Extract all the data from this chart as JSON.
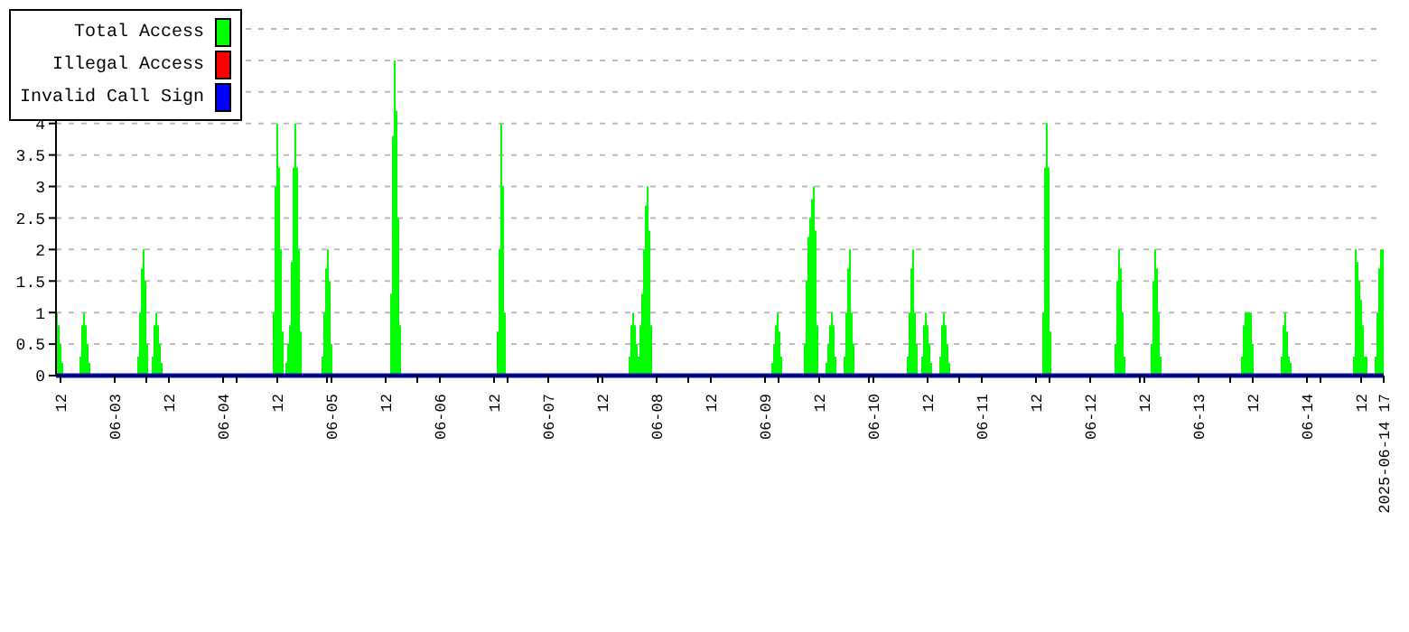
{
  "chart_data": {
    "type": "area",
    "xlim": [
      "2025-06-02T11:00",
      "2025-06-14T17:00"
    ],
    "ylim": [
      0,
      5.5
    ],
    "yticks": [
      0,
      0.5,
      1,
      1.5,
      2,
      2.5,
      3,
      3.5,
      4,
      {
        "value": 4.5,
        "label": null
      },
      {
        "value": 5,
        "label": null
      },
      {
        "value": 5.5,
        "label": null
      }
    ],
    "xticks": [
      {
        "value": "2025-06-02T12:00",
        "label": "12"
      },
      {
        "value": "2025-06-03T00:00",
        "label": "06-03"
      },
      {
        "value": "2025-06-03T07:00",
        "label": null
      },
      {
        "value": "2025-06-03T12:00",
        "label": "12"
      },
      {
        "value": "2025-06-04T00:00",
        "label": "06-04"
      },
      {
        "value": "2025-06-04T03:00",
        "label": null
      },
      {
        "value": "2025-06-04T12:00",
        "label": "12"
      },
      {
        "value": "2025-06-04T23:00",
        "label": null
      },
      {
        "value": "2025-06-05T00:00",
        "label": "06-05"
      },
      {
        "value": "2025-06-05T12:00",
        "label": "12"
      },
      {
        "value": "2025-06-05T19:00",
        "label": null
      },
      {
        "value": "2025-06-06T00:00",
        "label": "06-06"
      },
      {
        "value": "2025-06-06T12:00",
        "label": "12"
      },
      {
        "value": "2025-06-06T15:00",
        "label": null
      },
      {
        "value": "2025-06-07T00:00",
        "label": "06-07"
      },
      {
        "value": "2025-06-07T11:00",
        "label": null
      },
      {
        "value": "2025-06-07T12:00",
        "label": "12"
      },
      {
        "value": "2025-06-08T00:00",
        "label": "06-08"
      },
      {
        "value": "2025-06-08T07:00",
        "label": null
      },
      {
        "value": "2025-06-08T12:00",
        "label": "12"
      },
      {
        "value": "2025-06-09T00:00",
        "label": "06-09"
      },
      {
        "value": "2025-06-09T03:00",
        "label": null
      },
      {
        "value": "2025-06-09T12:00",
        "label": "12"
      },
      {
        "value": "2025-06-09T23:00",
        "label": null
      },
      {
        "value": "2025-06-10T00:00",
        "label": "06-10"
      },
      {
        "value": "2025-06-10T12:00",
        "label": "12"
      },
      {
        "value": "2025-06-10T19:00",
        "label": null
      },
      {
        "value": "2025-06-11T00:00",
        "label": "06-11"
      },
      {
        "value": "2025-06-11T12:00",
        "label": "12"
      },
      {
        "value": "2025-06-11T15:00",
        "label": null
      },
      {
        "value": "2025-06-12T00:00",
        "label": "06-12"
      },
      {
        "value": "2025-06-12T11:00",
        "label": null
      },
      {
        "value": "2025-06-12T12:00",
        "label": "12"
      },
      {
        "value": "2025-06-13T00:00",
        "label": "06-13"
      },
      {
        "value": "2025-06-13T07:00",
        "label": null
      },
      {
        "value": "2025-06-13T12:00",
        "label": "12"
      },
      {
        "value": "2025-06-14T00:00",
        "label": "06-14"
      },
      {
        "value": "2025-06-14T03:00",
        "label": null
      },
      {
        "value": "2025-06-14T12:00",
        "label": "12"
      },
      {
        "value": "2025-06-14T17:00",
        "label": "2025-06-14 17"
      }
    ],
    "grid": "y",
    "legend": "top left",
    "series": [
      {
        "name": "Total Access",
        "color": "#00ff00",
        "x": [
          "2025-06-02T11:00",
          "2025-06-02T11:24",
          "2025-06-02T11:48",
          "2025-06-02T12:12",
          "2025-06-02T12:36",
          "2025-06-02T16:12",
          "2025-06-02T16:36",
          "2025-06-02T17:00",
          "2025-06-02T17:24",
          "2025-06-02T17:48",
          "2025-06-02T18:12",
          "2025-06-02T18:36",
          "2025-06-03T05:00",
          "2025-06-03T05:24",
          "2025-06-03T05:48",
          "2025-06-03T06:12",
          "2025-06-03T06:36",
          "2025-06-03T07:00",
          "2025-06-03T07:24",
          "2025-06-03T08:12",
          "2025-06-03T08:36",
          "2025-06-03T09:00",
          "2025-06-03T09:24",
          "2025-06-03T09:48",
          "2025-06-03T10:12",
          "2025-06-03T10:36",
          "2025-06-04T11:00",
          "2025-06-04T11:24",
          "2025-06-04T11:48",
          "2025-06-04T12:12",
          "2025-06-04T12:36",
          "2025-06-04T13:00",
          "2025-06-04T13:24",
          "2025-06-04T13:48",
          "2025-06-04T14:12",
          "2025-06-04T14:36",
          "2025-06-04T15:00",
          "2025-06-04T15:24",
          "2025-06-04T15:48",
          "2025-06-04T16:12",
          "2025-06-04T16:36",
          "2025-06-04T17:00",
          "2025-06-04T17:24",
          "2025-06-04T21:48",
          "2025-06-04T22:12",
          "2025-06-04T22:36",
          "2025-06-04T23:00",
          "2025-06-04T23:24",
          "2025-06-04T23:48",
          "2025-06-05T00:12",
          "2025-06-05T13:00",
          "2025-06-05T13:24",
          "2025-06-05T13:48",
          "2025-06-05T14:12",
          "2025-06-05T14:36",
          "2025-06-05T15:00",
          "2025-06-05T15:24",
          "2025-06-06T12:36",
          "2025-06-06T13:00",
          "2025-06-06T13:24",
          "2025-06-06T13:48",
          "2025-06-06T14:12",
          "2025-06-06T14:36",
          "2025-06-07T17:48",
          "2025-06-07T18:12",
          "2025-06-07T18:36",
          "2025-06-07T19:00",
          "2025-06-07T19:24",
          "2025-06-07T19:48",
          "2025-06-07T20:12",
          "2025-06-07T20:36",
          "2025-06-07T21:00",
          "2025-06-07T21:24",
          "2025-06-07T21:48",
          "2025-06-07T22:12",
          "2025-06-07T22:36",
          "2025-06-07T23:00",
          "2025-06-09T01:24",
          "2025-06-09T01:48",
          "2025-06-09T02:12",
          "2025-06-09T02:36",
          "2025-06-09T03:00",
          "2025-06-09T03:24",
          "2025-06-09T03:48",
          "2025-06-09T08:36",
          "2025-06-09T09:00",
          "2025-06-09T09:24",
          "2025-06-09T09:48",
          "2025-06-09T10:12",
          "2025-06-09T10:36",
          "2025-06-09T11:00",
          "2025-06-09T11:24",
          "2025-06-09T11:48",
          "2025-06-09T13:24",
          "2025-06-09T13:48",
          "2025-06-09T14:12",
          "2025-06-09T14:36",
          "2025-06-09T15:00",
          "2025-06-09T15:24",
          "2025-06-09T15:48",
          "2025-06-09T17:24",
          "2025-06-09T17:48",
          "2025-06-09T18:12",
          "2025-06-09T18:36",
          "2025-06-09T19:00",
          "2025-06-09T19:24",
          "2025-06-09T19:48",
          "2025-06-10T07:24",
          "2025-06-10T07:48",
          "2025-06-10T08:12",
          "2025-06-10T08:36",
          "2025-06-10T09:00",
          "2025-06-10T09:24",
          "2025-06-10T09:48",
          "2025-06-10T10:36",
          "2025-06-10T11:00",
          "2025-06-10T11:24",
          "2025-06-10T11:48",
          "2025-06-10T12:12",
          "2025-06-10T12:36",
          "2025-06-10T13:00",
          "2025-06-10T14:36",
          "2025-06-10T15:00",
          "2025-06-10T15:24",
          "2025-06-10T15:48",
          "2025-06-10T16:12",
          "2025-06-10T16:36",
          "2025-06-10T17:00",
          "2025-06-11T13:24",
          "2025-06-11T13:48",
          "2025-06-11T14:12",
          "2025-06-11T14:36",
          "2025-06-11T15:00",
          "2025-06-11T15:24",
          "2025-06-12T05:24",
          "2025-06-12T05:48",
          "2025-06-12T06:12",
          "2025-06-12T06:36",
          "2025-06-12T07:00",
          "2025-06-12T07:24",
          "2025-06-12T07:48",
          "2025-06-12T13:24",
          "2025-06-12T13:48",
          "2025-06-12T14:12",
          "2025-06-12T14:36",
          "2025-06-12T15:00",
          "2025-06-12T15:24",
          "2025-06-12T15:48",
          "2025-06-13T09:24",
          "2025-06-13T09:48",
          "2025-06-13T10:12",
          "2025-06-13T11:48",
          "2025-06-13T12:12",
          "2025-06-13T18:12",
          "2025-06-13T18:36",
          "2025-06-13T19:00",
          "2025-06-13T19:24",
          "2025-06-13T19:48",
          "2025-06-13T20:12",
          "2025-06-13T20:36",
          "2025-06-14T10:12",
          "2025-06-14T10:36",
          "2025-06-14T11:00",
          "2025-06-14T11:24",
          "2025-06-14T11:48",
          "2025-06-14T12:12",
          "2025-06-14T12:36",
          "2025-06-14T13:24",
          "2025-06-14T15:00",
          "2025-06-14T15:24",
          "2025-06-14T15:48",
          "2025-06-14T16:12",
          "2025-06-14T17:00"
        ],
        "values": [
          1,
          0.8,
          0.5,
          0.2,
          0,
          0.3,
          0.8,
          1,
          0.8,
          0.5,
          0.2,
          0,
          0.3,
          1,
          1.7,
          2,
          1.5,
          0.5,
          0,
          0.3,
          0.8,
          1,
          0.8,
          0.5,
          0.2,
          0,
          1,
          3,
          4,
          3.3,
          2,
          0.7,
          0,
          0.2,
          0.5,
          0.8,
          1.8,
          3.3,
          4,
          3.3,
          2,
          0.7,
          0,
          0.3,
          1,
          1.7,
          2,
          1.5,
          0.5,
          0,
          1.3,
          3.8,
          5,
          4.2,
          2.5,
          0.8,
          0,
          0.7,
          2,
          4,
          3,
          1,
          0,
          0.3,
          0.8,
          1,
          0.8,
          0.5,
          0.3,
          0.8,
          1.3,
          2,
          2.7,
          3,
          2.3,
          0.8,
          0,
          0.2,
          0.5,
          0.8,
          1,
          0.7,
          0.3,
          0,
          0.5,
          1.5,
          2.2,
          2.5,
          2.8,
          3,
          2.3,
          0.8,
          0,
          0.2,
          0.5,
          0.8,
          1,
          0.8,
          0.3,
          0,
          0.3,
          1,
          1.7,
          2,
          1,
          0.5,
          0,
          0.3,
          1,
          1.7,
          2,
          1,
          0.5,
          0,
          0.3,
          0.8,
          1,
          0.8,
          0.5,
          0.2,
          0,
          0.3,
          0.8,
          1,
          0.8,
          0.5,
          0.2,
          0,
          1,
          3.3,
          4,
          3.3,
          0.7,
          0,
          0.5,
          1.5,
          2,
          1.7,
          1,
          0.3,
          0,
          0.5,
          1.5,
          2,
          1.7,
          1,
          0.3,
          0,
          0.3,
          0.8,
          1,
          0.5,
          0,
          0.3,
          0.8,
          1,
          0.7,
          0.3,
          0.2,
          0,
          0.3,
          2,
          1.8,
          1.5,
          1.2,
          0.8,
          0.3,
          0,
          0.3,
          1,
          1.7,
          2,
          2
        ]
      },
      {
        "name": "Illegal Access",
        "color": "#ff0000",
        "type": "line"
      },
      {
        "name": "Invalid Call Sign",
        "color": "#0000ff",
        "type": "line",
        "x": [
          "2025-06-02T11:00",
          "2025-06-14T17:00"
        ],
        "values": [
          0,
          0
        ]
      }
    ]
  }
}
